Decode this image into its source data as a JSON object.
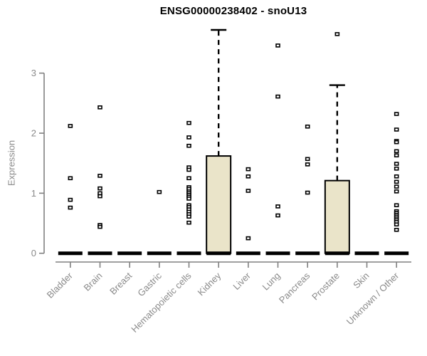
{
  "chart_data": {
    "type": "boxplot",
    "title": "ENSG00000238402 - snoU13",
    "ylabel": "Expression",
    "xlabel": "",
    "ylim": [
      0,
      3.85
    ],
    "yticks": [
      0,
      1,
      2,
      3
    ],
    "grid": false,
    "legend": null,
    "categories": [
      "Bladder",
      "Brain",
      "Breast",
      "Gastric",
      "Hematopoietic cells",
      "Kidney",
      "Liver",
      "Lung",
      "Pancreas",
      "Prostate",
      "Skin",
      "Unknown / Other"
    ],
    "series": [
      {
        "name": "Bladder",
        "median": 0,
        "q1": 0,
        "q3": 0,
        "whisker_low": 0,
        "whisker_high": 0,
        "outliers": [
          2.12,
          1.25,
          0.89,
          0.76
        ]
      },
      {
        "name": "Brain",
        "median": 0,
        "q1": 0,
        "q3": 0,
        "whisker_low": 0,
        "whisker_high": 0,
        "outliers": [
          2.43,
          1.29,
          1.08,
          1.0,
          0.95,
          0.47,
          0.44
        ]
      },
      {
        "name": "Breast",
        "median": 0,
        "q1": 0,
        "q3": 0,
        "whisker_low": 0,
        "whisker_high": 0,
        "outliers": []
      },
      {
        "name": "Gastric",
        "median": 0,
        "q1": 0,
        "q3": 0,
        "whisker_low": 0,
        "whisker_high": 0,
        "outliers": [
          1.02
        ]
      },
      {
        "name": "Hematopoietic cells",
        "median": 0,
        "q1": 0,
        "q3": 0,
        "whisker_low": 0,
        "whisker_high": 0,
        "outliers": [
          2.17,
          1.93,
          1.79,
          1.43,
          1.39,
          1.25,
          1.1,
          1.07,
          1.03,
          1.0,
          0.97,
          0.94,
          0.91,
          0.8,
          0.77,
          0.73,
          0.69,
          0.65,
          0.61,
          0.51
        ]
      },
      {
        "name": "Kidney",
        "median": 0,
        "q1": 0,
        "q3": 1.62,
        "whisker_low": 0,
        "whisker_high": 3.72,
        "outliers": []
      },
      {
        "name": "Liver",
        "median": 0,
        "q1": 0,
        "q3": 0,
        "whisker_low": 0,
        "whisker_high": 0,
        "outliers": [
          1.4,
          1.28,
          1.04,
          0.25
        ]
      },
      {
        "name": "Lung",
        "median": 0,
        "q1": 0,
        "q3": 0,
        "whisker_low": 0,
        "whisker_high": 0,
        "outliers": [
          3.46,
          2.61,
          0.78,
          0.63
        ]
      },
      {
        "name": "Pancreas",
        "median": 0,
        "q1": 0,
        "q3": 0,
        "whisker_low": 0,
        "whisker_high": 0,
        "outliers": [
          2.11,
          1.57,
          1.48,
          1.01
        ]
      },
      {
        "name": "Prostate",
        "median": 0,
        "q1": 0,
        "q3": 1.21,
        "whisker_low": 0,
        "whisker_high": 2.8,
        "outliers": [
          3.65
        ]
      },
      {
        "name": "Skin",
        "median": 0,
        "q1": 0,
        "q3": 0,
        "whisker_low": 0,
        "whisker_high": 0,
        "outliers": []
      },
      {
        "name": "Unknown / Other",
        "median": 0,
        "q1": 0,
        "q3": 0,
        "whisker_low": 0,
        "whisker_high": 0,
        "outliers": [
          2.32,
          2.06,
          1.87,
          1.85,
          1.7,
          1.63,
          1.49,
          1.41,
          1.28,
          1.19,
          1.11,
          1.03,
          0.8,
          0.7,
          0.67,
          0.64,
          0.61,
          0.58,
          0.55,
          0.52,
          0.48,
          0.39
        ]
      }
    ],
    "colors": {
      "box_fill": "#EAE4C9",
      "box_border": "#000000",
      "median": "#000000",
      "whisker": "#000000",
      "outlier_border": "#000000",
      "outlier_fill": "#ffffff",
      "axis": "#808080",
      "tick_label": "#8a8a8a",
      "title": "#000000"
    }
  }
}
